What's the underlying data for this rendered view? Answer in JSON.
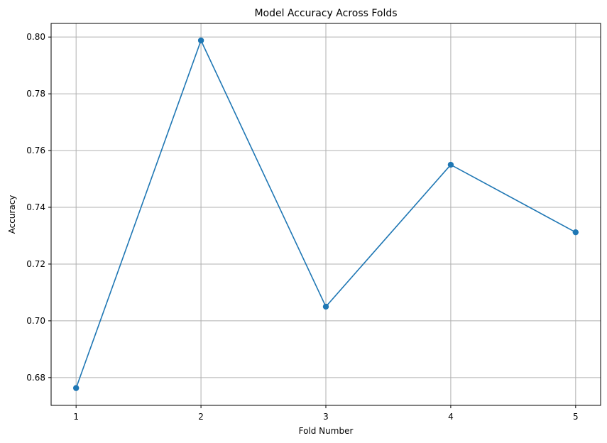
{
  "chart_data": {
    "type": "line",
    "title": "Model Accuracy Across Folds",
    "xlabel": "Fold Number",
    "ylabel": "Accuracy",
    "x": [
      1,
      2,
      3,
      4,
      5
    ],
    "x_tick_labels": [
      "1",
      "2",
      "3",
      "4",
      "5"
    ],
    "y_tick_values": [
      0.68,
      0.7,
      0.72,
      0.74,
      0.76,
      0.78,
      0.8
    ],
    "y_tick_labels": [
      "0.68",
      "0.70",
      "0.72",
      "0.74",
      "0.76",
      "0.78",
      "0.80"
    ],
    "xlim": [
      0.8,
      5.2
    ],
    "ylim": [
      0.6702,
      0.8048
    ],
    "grid": true,
    "series": [
      {
        "color": "#1f77b4",
        "marker": "circle",
        "values": [
          0.6763,
          0.7988,
          0.705,
          0.755,
          0.7312
        ]
      }
    ]
  }
}
